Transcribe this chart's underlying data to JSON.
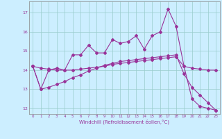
{
  "xlabel": "Windchill (Refroidissement éolien,°C)",
  "bg_color": "#cceeff",
  "line_color": "#993399",
  "grid_color": "#99cccc",
  "xlim": [
    -0.5,
    23.5
  ],
  "ylim": [
    11.7,
    17.6
  ],
  "yticks": [
    12,
    13,
    14,
    15,
    16,
    17
  ],
  "xticks": [
    0,
    1,
    2,
    3,
    4,
    5,
    6,
    7,
    8,
    9,
    10,
    11,
    12,
    13,
    14,
    15,
    16,
    17,
    18,
    19,
    20,
    21,
    22,
    23
  ],
  "series1_x": [
    0,
    1,
    2,
    3,
    4,
    5,
    6,
    7,
    8,
    9,
    10,
    11,
    12,
    13,
    14,
    15,
    16,
    17,
    18,
    19,
    20,
    21,
    22,
    23
  ],
  "series1_y": [
    14.2,
    13.0,
    14.0,
    14.1,
    14.0,
    14.8,
    14.8,
    15.3,
    14.9,
    14.9,
    15.6,
    15.4,
    15.5,
    15.8,
    15.1,
    15.8,
    16.0,
    17.2,
    16.3,
    14.2,
    12.5,
    12.1,
    12.0,
    11.9
  ],
  "series2_x": [
    0,
    1,
    2,
    3,
    4,
    5,
    6,
    7,
    8,
    9,
    10,
    11,
    12,
    13,
    14,
    15,
    16,
    17,
    18,
    19,
    20,
    21,
    22,
    23
  ],
  "series2_y": [
    14.2,
    14.1,
    14.05,
    14.0,
    14.0,
    14.0,
    14.05,
    14.1,
    14.15,
    14.2,
    14.3,
    14.35,
    14.4,
    14.45,
    14.5,
    14.55,
    14.6,
    14.65,
    14.7,
    14.2,
    14.1,
    14.05,
    14.0,
    14.0
  ],
  "series3_x": [
    0,
    1,
    2,
    3,
    4,
    5,
    6,
    7,
    8,
    9,
    10,
    11,
    12,
    13,
    14,
    15,
    16,
    17,
    18,
    19,
    20,
    21,
    22,
    23
  ],
  "series3_y": [
    14.2,
    13.0,
    13.1,
    13.25,
    13.4,
    13.6,
    13.75,
    13.95,
    14.1,
    14.25,
    14.35,
    14.45,
    14.5,
    14.55,
    14.6,
    14.65,
    14.7,
    14.75,
    14.8,
    13.8,
    13.1,
    12.7,
    12.3,
    11.9
  ]
}
